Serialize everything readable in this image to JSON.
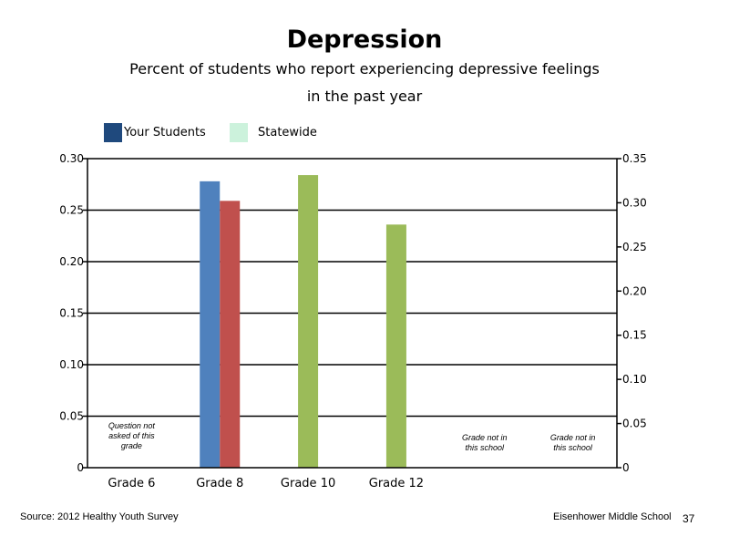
{
  "slide": {
    "title": "Depression",
    "subtitle_line1": "Percent of students who report experiencing depressive feelings",
    "subtitle_line2": "in the past year",
    "source": "Source: 2012 Healthy Youth Survey",
    "school": "Eisenhower Middle  School",
    "page_number": "37"
  },
  "legend": [
    {
      "label": "Your Students",
      "color": "#1f497d"
    },
    {
      "label": "Statewide",
      "color": "#ccf2dc"
    }
  ],
  "chart_data": {
    "type": "bar",
    "categories": [
      "Grade 6",
      "Grade 8",
      "Grade 10",
      "Grade 12",
      "",
      ""
    ],
    "series": [
      {
        "name": "Your Students",
        "values": [
          null,
          0.278,
          null,
          null,
          null,
          null
        ],
        "color": "#4f81bd",
        "axis": "left"
      },
      {
        "values": [
          null,
          0.259,
          null,
          null,
          null,
          null
        ],
        "color": "#c0504d",
        "axis": "left"
      },
      {
        "values": [
          null,
          null,
          0.284,
          0.236,
          null,
          null
        ],
        "color": "#9bbb59",
        "axis": "left"
      }
    ],
    "y_left": {
      "ylim": [
        0,
        0.3
      ],
      "ticks": [
        "0",
        "0.05",
        "0.10",
        "0.15",
        "0.20",
        "0.25",
        "0.30"
      ]
    },
    "y_right": {
      "ylim": [
        0,
        0.35
      ],
      "ticks": [
        "0",
        "0.05",
        "0.10",
        "0.15",
        "0.20",
        "0.25",
        "0.30",
        "0.35"
      ]
    },
    "annotations": [
      {
        "category_index": 0,
        "lines": [
          "Question not",
          "asked of this",
          "grade"
        ]
      },
      {
        "category_index": 4,
        "lines": [
          "Grade not in",
          "this school"
        ]
      },
      {
        "category_index": 5,
        "lines": [
          "Grade not in",
          "this school"
        ]
      }
    ],
    "grid": true
  }
}
